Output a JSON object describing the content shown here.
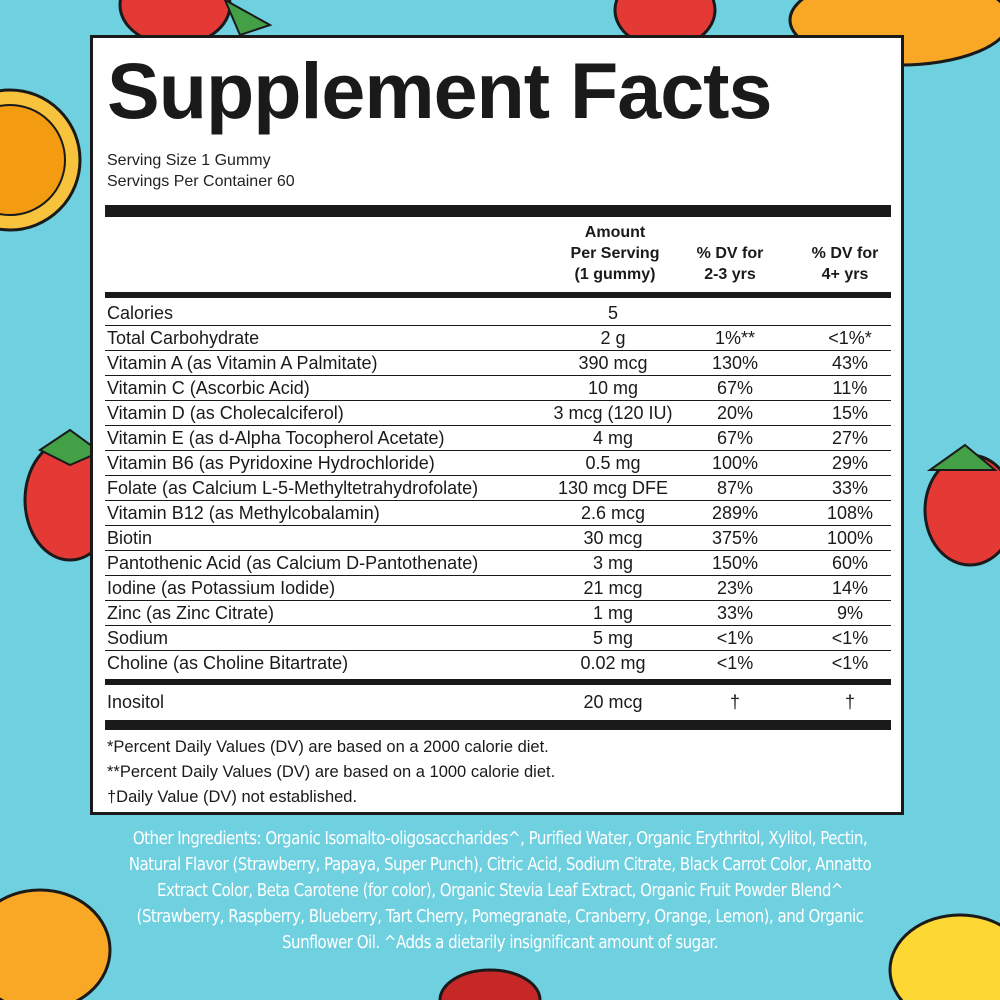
{
  "panel": {
    "title": "Supplement Facts",
    "serving_size": "Serving Size 1 Gummy",
    "servings_per_container": "Servings Per Container 60"
  },
  "headers": {
    "amount": [
      "Amount",
      "Per Serving",
      "(1 gummy)"
    ],
    "dv_toddler": [
      "% DV for",
      "2-3 yrs"
    ],
    "dv_child": [
      "% DV for",
      "4+ yrs"
    ]
  },
  "rows": [
    {
      "name": "Calories",
      "amount": "5",
      "dv1": "",
      "dv2": ""
    },
    {
      "name": "Total Carbohydrate",
      "amount": "2 g",
      "dv1": "1%**",
      "dv2": "<1%*"
    },
    {
      "name": "Vitamin A (as Vitamin A Palmitate)",
      "amount": "390 mcg",
      "dv1": "130%",
      "dv2": "43%"
    },
    {
      "name": "Vitamin C (Ascorbic Acid)",
      "amount": "10 mg",
      "dv1": "67%",
      "dv2": "11%"
    },
    {
      "name": "Vitamin D (as Cholecalciferol)",
      "amount": "3 mcg (120 IU)",
      "dv1": "20%",
      "dv2": "15%"
    },
    {
      "name": "Vitamin E (as d-Alpha Tocopherol Acetate)",
      "amount": "4 mg",
      "dv1": "67%",
      "dv2": "27%"
    },
    {
      "name": "Vitamin B6 (as Pyridoxine Hydrochloride)",
      "amount": "0.5 mg",
      "dv1": "100%",
      "dv2": "29%"
    },
    {
      "name": "Folate (as Calcium L-5-Methyltetrahydrofolate)",
      "amount": "130 mcg DFE",
      "dv1": "87%",
      "dv2": "33%"
    },
    {
      "name": "Vitamin B12 (as Methylcobalamin)",
      "amount": "2.6 mcg",
      "dv1": "289%",
      "dv2": "108%"
    },
    {
      "name": "Biotin",
      "amount": "30 mcg",
      "dv1": "375%",
      "dv2": "100%"
    },
    {
      "name": "Pantothenic Acid (as Calcium D-Pantothenate)",
      "amount": "3 mg",
      "dv1": "150%",
      "dv2": "60%"
    },
    {
      "name": "Iodine (as Potassium Iodide)",
      "amount": "21 mcg",
      "dv1": "23%",
      "dv2": "14%"
    },
    {
      "name": "Zinc (as Zinc Citrate)",
      "amount": "1 mg",
      "dv1": "33%",
      "dv2": "9%"
    },
    {
      "name": "Sodium",
      "amount": "5 mg",
      "dv1": "<1%",
      "dv2": "<1%"
    },
    {
      "name": "Choline (as Choline Bitartrate)",
      "amount": "0.02 mg",
      "dv1": "<1%",
      "dv2": "<1%"
    }
  ],
  "other_row": {
    "name": "Inositol",
    "amount": "20 mcg",
    "dv1": "†",
    "dv2": "†"
  },
  "footnotes": [
    "*Percent Daily Values (DV) are based on a 2000 calorie diet.",
    "**Percent Daily Values (DV) are based on a 1000 calorie diet.",
    "†Daily Value (DV) not established."
  ],
  "ingredients": [
    "Other Ingredients: Organic Isomalto-oligosaccharides^, Purified Water, Organic Erythritol, Xylitol, Pectin,",
    "Natural Flavor (Strawberry, Papaya, Super Punch), Citric Acid, Sodium Citrate, Black Carrot Color, Annatto",
    "Extract Color, Beta Carotene (for color), Organic Stevia Leaf Extract, Organic Fruit Powder Blend^",
    "(Strawberry, Raspberry, Blueberry, Tart Cherry, Pomegranate, Cranberry, Orange, Lemon), and Organic",
    "Sunflower Oil. ^Adds a dietarily insignificant amount of sugar."
  ],
  "colors": {
    "background": "#6fd0e0",
    "panel": "#ffffff",
    "ink": "#1a1a1a",
    "strawberry": "#e53935",
    "orange": "#f9a825",
    "leaf": "#43a047"
  }
}
